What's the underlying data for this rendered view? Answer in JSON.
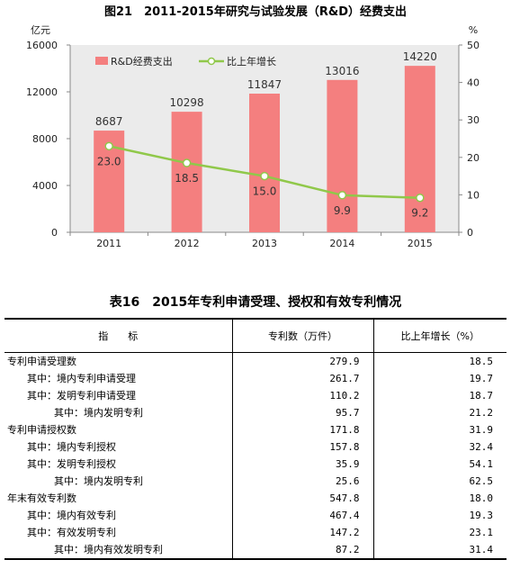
{
  "chart_data": {
    "type": "bar",
    "title": "图21　2011-2015年研究与试验发展（R&D）经费支出",
    "categories": [
      "2011",
      "2012",
      "2013",
      "2014",
      "2015"
    ],
    "y_left": {
      "label": "亿元",
      "range": [
        0,
        16000
      ],
      "ticks": [
        0,
        4000,
        8000,
        12000,
        16000
      ]
    },
    "y_right": {
      "label": "%",
      "range": [
        0,
        50
      ],
      "ticks": [
        0,
        10,
        20,
        30,
        40,
        50
      ]
    },
    "series": [
      {
        "name": "R&D经费支出",
        "type": "bar",
        "axis": "left",
        "values": [
          8687,
          10298,
          11847,
          13016,
          14220
        ],
        "labels": [
          "8687",
          "10298",
          "11847",
          "13016",
          "14220"
        ],
        "color": "#f47f7f"
      },
      {
        "name": "比上年增长",
        "type": "line",
        "axis": "right",
        "values": [
          23.0,
          18.5,
          15.0,
          9.9,
          9.2
        ],
        "labels": [
          "23.0",
          "18.5",
          "15.0",
          "9.9",
          "9.2"
        ],
        "color": "#90c84a"
      }
    ],
    "legend": "top-left",
    "grid": false
  },
  "table": {
    "title": "表16　2015年专利申请受理、授权和有效专利情况",
    "headers": [
      "指　　标",
      "专利数（万件）",
      "比上年增长（%）"
    ],
    "rows": [
      {
        "label": "专利申请受理数",
        "count": "279.9",
        "growth": "18.5"
      },
      {
        "label": "其中：境内专利申请受理",
        "count": "261.7",
        "growth": "19.7"
      },
      {
        "label": "其中：发明专利申请受理",
        "count": "110.2",
        "growth": "18.7"
      },
      {
        "label": "其中：境内发明专利",
        "count": "95.7",
        "growth": "21.2"
      },
      {
        "label": "专利申请授权数",
        "count": "171.8",
        "growth": "31.9"
      },
      {
        "label": "其中：境内专利授权",
        "count": "157.8",
        "growth": "32.4"
      },
      {
        "label": "其中：发明专利授权",
        "count": "35.9",
        "growth": "54.1"
      },
      {
        "label": "其中：境内发明专利",
        "count": "25.6",
        "growth": "62.5"
      },
      {
        "label": "年末有效专利数",
        "count": "547.8",
        "growth": "18.0"
      },
      {
        "label": "其中：境内有效专利",
        "count": "467.4",
        "growth": "19.3"
      },
      {
        "label": "其中：有效发明专利",
        "count": "147.2",
        "growth": "23.1"
      },
      {
        "label": "其中：境内有效发明专利",
        "count": "87.2",
        "growth": "31.4"
      }
    ]
  }
}
